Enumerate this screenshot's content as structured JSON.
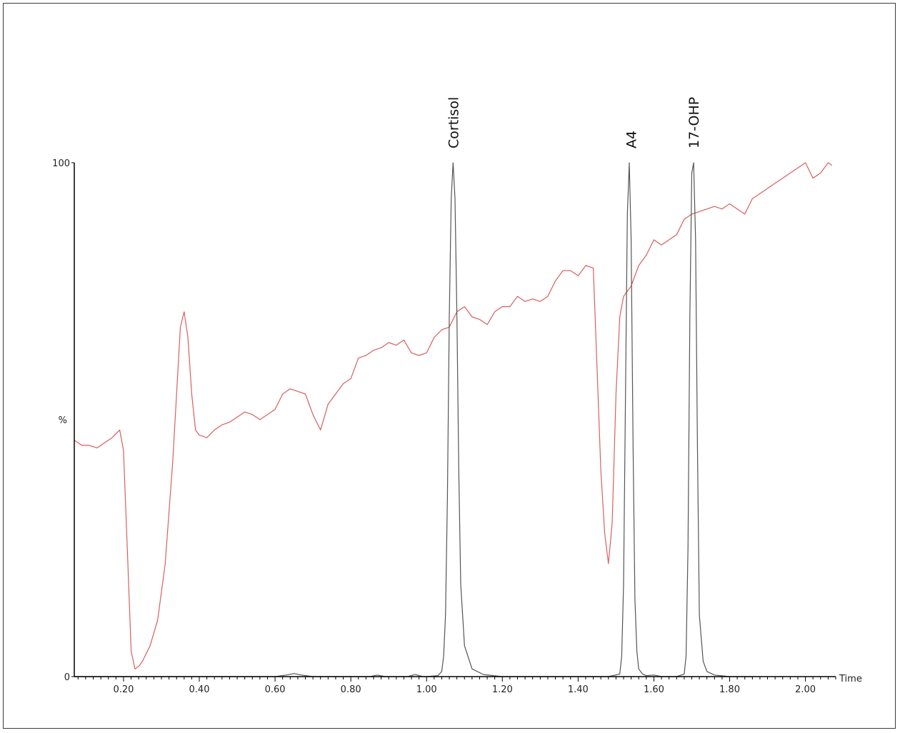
{
  "chart_data": {
    "type": "line",
    "title": "",
    "xlabel": "Time",
    "ylabel": "%",
    "xlim": [
      0.07,
      2.08
    ],
    "ylim": [
      0,
      100
    ],
    "x_ticks": [
      "0.20",
      "0.40",
      "0.60",
      "0.80",
      "1.00",
      "1.20",
      "1.40",
      "1.60",
      "1.80",
      "2.00"
    ],
    "y_ticks": [
      "0",
      "100"
    ],
    "grid": false,
    "peak_labels": [
      {
        "label": "Cortisol",
        "x": 1.07
      },
      {
        "label": "A4",
        "x": 1.54
      },
      {
        "label": "17-OHP",
        "x": 1.705
      }
    ],
    "colors": {
      "trace": "#d95f5f",
      "chromatogram": "#555555",
      "axis": "#000000"
    },
    "series": [
      {
        "color": "#d95f5f",
        "x": [
          0.07,
          0.09,
          0.11,
          0.13,
          0.15,
          0.17,
          0.19,
          0.2,
          0.21,
          0.22,
          0.23,
          0.24,
          0.25,
          0.27,
          0.29,
          0.31,
          0.33,
          0.35,
          0.36,
          0.37,
          0.38,
          0.39,
          0.4,
          0.42,
          0.44,
          0.46,
          0.48,
          0.5,
          0.52,
          0.54,
          0.56,
          0.58,
          0.6,
          0.62,
          0.64,
          0.66,
          0.68,
          0.7,
          0.72,
          0.74,
          0.76,
          0.78,
          0.8,
          0.82,
          0.84,
          0.86,
          0.88,
          0.9,
          0.92,
          0.94,
          0.96,
          0.98,
          1.0,
          1.02,
          1.04,
          1.06,
          1.08,
          1.1,
          1.12,
          1.14,
          1.16,
          1.18,
          1.2,
          1.22,
          1.24,
          1.26,
          1.28,
          1.3,
          1.32,
          1.34,
          1.36,
          1.38,
          1.4,
          1.42,
          1.44,
          1.45,
          1.46,
          1.47,
          1.48,
          1.49,
          1.5,
          1.51,
          1.52,
          1.53,
          1.54,
          1.56,
          1.58,
          1.6,
          1.62,
          1.64,
          1.66,
          1.68,
          1.7,
          1.72,
          1.74,
          1.76,
          1.78,
          1.8,
          1.82,
          1.84,
          1.86,
          1.88,
          1.9,
          1.92,
          1.94,
          1.96,
          1.98,
          2.0,
          2.02,
          2.04,
          2.06,
          2.07
        ],
        "values": [
          46,
          45,
          45,
          44.5,
          45.5,
          46.5,
          48,
          44,
          25,
          5,
          1.5,
          2,
          3,
          6,
          11,
          22,
          42,
          68,
          71,
          66,
          55,
          48,
          47,
          46.5,
          48,
          49,
          49.5,
          50.5,
          51.5,
          51,
          50,
          51,
          52,
          55,
          56,
          55.5,
          55,
          51,
          48,
          53,
          55,
          57,
          58,
          62,
          62.5,
          63.5,
          64,
          65,
          64.5,
          65.5,
          63,
          62.5,
          63,
          66,
          67.5,
          68,
          71,
          72,
          70,
          69.5,
          68.5,
          71,
          72,
          72,
          74,
          73,
          73.5,
          73,
          74,
          77,
          79,
          79,
          78,
          80,
          79.5,
          60,
          40,
          28,
          22,
          30,
          55,
          70,
          74,
          75,
          76,
          80,
          82,
          85,
          84,
          85,
          86,
          89,
          90,
          90.5,
          91,
          91.5,
          91,
          92,
          91,
          90,
          93,
          94,
          95,
          96,
          97,
          98,
          99,
          100,
          97,
          98,
          100,
          99.5
        ]
      },
      {
        "color": "#555555",
        "x": [
          0.07,
          0.5,
          0.6,
          0.63,
          0.65,
          0.67,
          0.7,
          0.85,
          0.87,
          0.89,
          0.95,
          0.97,
          0.99,
          1.0,
          1.03,
          1.04,
          1.045,
          1.05,
          1.055,
          1.06,
          1.065,
          1.07,
          1.075,
          1.08,
          1.085,
          1.09,
          1.1,
          1.12,
          1.15,
          1.2,
          1.3,
          1.48,
          1.51,
          1.515,
          1.52,
          1.525,
          1.53,
          1.535,
          1.54,
          1.545,
          1.55,
          1.555,
          1.56,
          1.57,
          1.58,
          1.6,
          1.62,
          1.66,
          1.68,
          1.685,
          1.69,
          1.695,
          1.7,
          1.705,
          1.71,
          1.715,
          1.72,
          1.73,
          1.74,
          1.76,
          1.8,
          1.86
        ],
        "values": [
          0,
          0,
          0,
          0.3,
          0.6,
          0.3,
          0,
          0,
          0.3,
          0,
          0,
          0.4,
          0,
          0,
          0.2,
          1,
          4,
          12,
          35,
          70,
          93,
          100,
          93,
          70,
          40,
          18,
          6,
          1.5,
          0.4,
          0,
          0,
          0,
          0.5,
          4,
          18,
          55,
          90,
          100,
          85,
          45,
          15,
          5,
          1.5,
          0.5,
          0.2,
          0.3,
          0,
          0,
          0.5,
          4,
          25,
          70,
          98,
          100,
          85,
          45,
          12,
          3,
          1,
          0.3,
          0,
          0
        ]
      }
    ]
  }
}
